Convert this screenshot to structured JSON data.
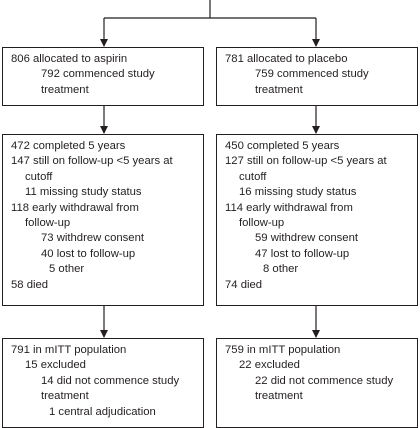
{
  "aspirin_arm": {
    "allocation": {
      "lines": [
        "806 allocated to aspirin",
        "792 commenced study",
        "treatment"
      ]
    },
    "follow_up": {
      "lines": [
        "472 completed 5 years",
        "147 still on follow-up <5 years at",
        "cutoff",
        "11 missing study status",
        "118 early withdrawal from",
        "follow-up",
        "73 withdrew consent",
        "40 lost to follow-up",
        "5 other",
        "58 died"
      ]
    },
    "mitt": {
      "lines": [
        "791 in mITT population",
        "15 excluded",
        "14 did not commence study",
        "treatment",
        "1 central adjudication"
      ]
    }
  },
  "placebo_arm": {
    "allocation": {
      "lines": [
        "781 allocated to placebo",
        "759 commenced study",
        "treatment"
      ]
    },
    "follow_up": {
      "lines": [
        "450 completed 5 years",
        "127 still on follow-up <5 years at",
        "cutoff",
        "16 missing study status",
        "114 early withdrawal from",
        "follow-up",
        "59 withdrew consent",
        "47 lost to follow-up",
        "8 other",
        "74 died"
      ]
    },
    "mitt": {
      "lines": [
        "759 in mITT population",
        "22 excluded",
        "22 did not commence study",
        "treatment"
      ]
    }
  }
}
